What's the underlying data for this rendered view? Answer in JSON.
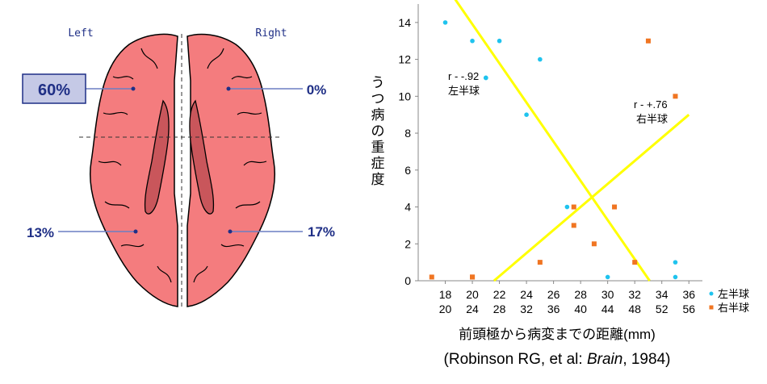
{
  "brain": {
    "left_label": "Left",
    "right_label": "Right",
    "regions": {
      "left_anterior": "60%",
      "right_anterior": "0%",
      "left_posterior": "13%",
      "right_posterior": "17%"
    },
    "colors": {
      "cortex": "#f47c7e",
      "ventricle": "#c9565b",
      "label": "#1f2f86",
      "highlight_box": "#c5c9e6"
    }
  },
  "chart_data": {
    "type": "scatter",
    "ylabel": "うつ病の重症度",
    "xlabel": "前頭極から病変までの距離(mm)",
    "citation_prefix": "(Robinson RG, et al: ",
    "citation_journal": "Brain",
    "citation_suffix": ", 1984)",
    "ylim": [
      0,
      15
    ],
    "yticks": [
      "0",
      "2",
      "4",
      "6",
      "8",
      "10",
      "12",
      "14"
    ],
    "xticks_left": [
      "18",
      "20",
      "22",
      "24",
      "26",
      "28",
      "30",
      "32",
      "34",
      "36"
    ],
    "xticks_right": [
      "20",
      "24",
      "28",
      "32",
      "36",
      "40",
      "44",
      "48",
      "52",
      "56"
    ],
    "xlim_left": [
      16,
      37
    ],
    "series": [
      {
        "name": "左半球",
        "color": "#1fc3ee",
        "marker": "circle",
        "x": [
          18,
          20,
          21,
          21,
          22,
          24,
          25,
          27,
          30,
          35,
          35
        ],
        "y": [
          14,
          13,
          11,
          11,
          13,
          9,
          12,
          4,
          0.2,
          1,
          0.2
        ]
      },
      {
        "name": "右半球",
        "color": "#f07522",
        "marker": "square",
        "x": [
          17,
          20,
          20,
          20,
          25,
          27.5,
          27.5,
          29,
          30.5,
          32,
          33,
          35
        ],
        "y": [
          0.2,
          0.2,
          0.2,
          0.2,
          1,
          4,
          3,
          2,
          4,
          1,
          13,
          10
        ]
      }
    ],
    "regression_lines": [
      {
        "name": "left",
        "label_r": "r - -.92",
        "label_side": "左半球",
        "x": [
          18.5,
          33.1
        ],
        "y": [
          15.5,
          0
        ]
      },
      {
        "name": "right",
        "label_r": "r - +.76",
        "label_side": "右半球",
        "x": [
          21.6,
          36
        ],
        "y": [
          0,
          9
        ]
      }
    ],
    "line_color": "#ffff00"
  }
}
